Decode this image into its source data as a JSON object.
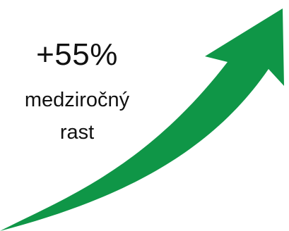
{
  "headline": "+55%",
  "caption_lines": [
    "medziročný",
    "rast"
  ],
  "arrow": {
    "icon": "upward-trend-arrow-icon",
    "color": "#0f9647"
  },
  "text_color": "#111111"
}
